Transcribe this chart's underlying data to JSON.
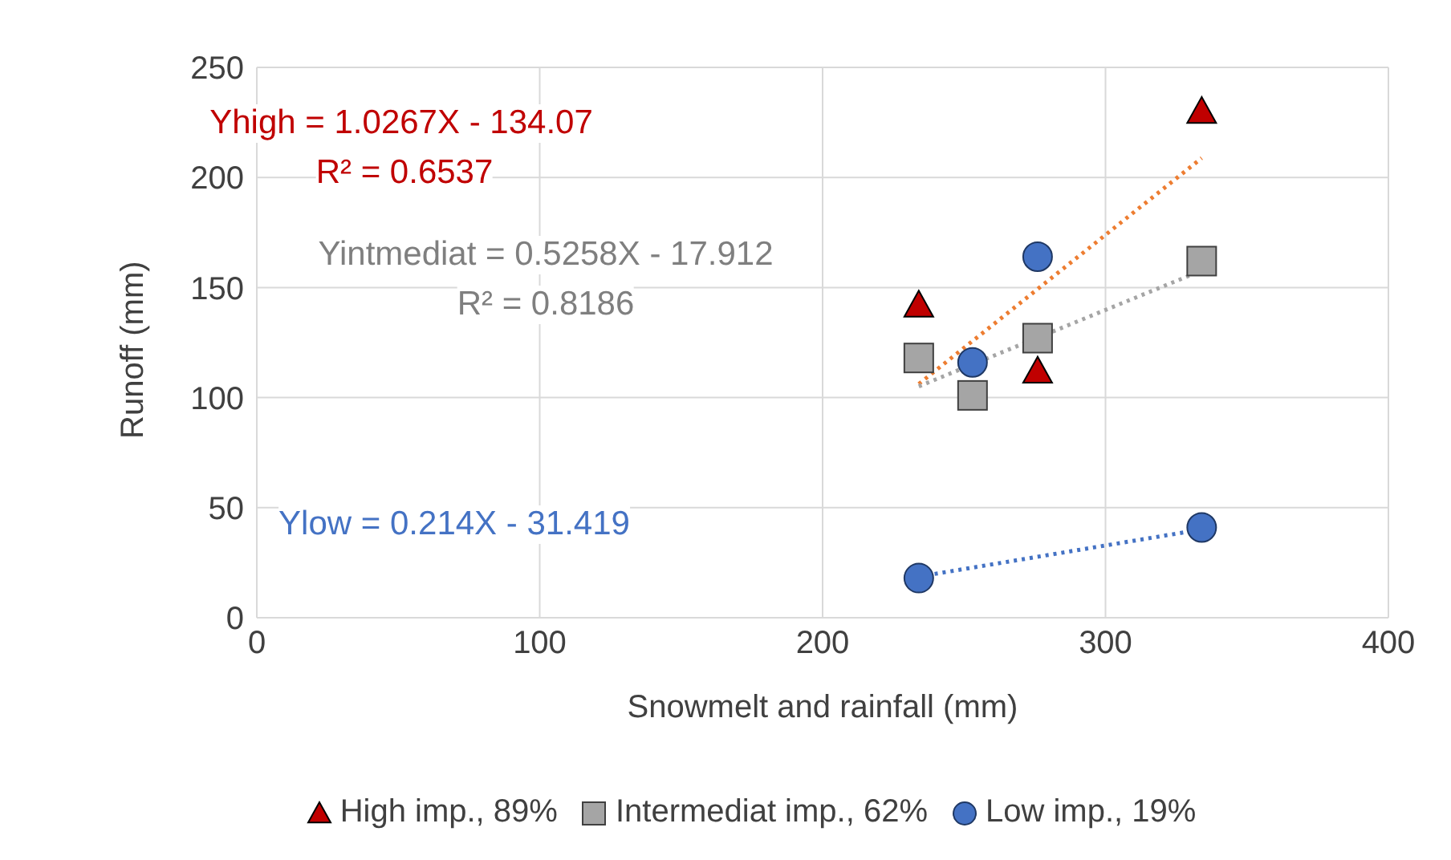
{
  "chart_data": {
    "type": "scatter",
    "xlabel": "Snowmelt and rainfall (mm)",
    "ylabel": "Runoff (mm)",
    "xlim": [
      0,
      400
    ],
    "xticks": [
      0,
      100,
      200,
      300,
      400
    ],
    "ylim": [
      0,
      250
    ],
    "yticks": [
      0,
      50,
      100,
      150,
      200,
      250
    ],
    "grid": true,
    "legend": "bottom",
    "series": [
      {
        "name": "High imp., 89%",
        "marker": "triangle",
        "color": "#c00000",
        "x": [
          234,
          276,
          334
        ],
        "values": [
          142,
          112,
          230
        ]
      },
      {
        "name": "Intermediat imp., 62%",
        "marker": "square",
        "color": "#a5a5a5",
        "x": [
          234,
          253,
          276,
          334
        ],
        "values": [
          118,
          101,
          127,
          162
        ]
      },
      {
        "name": "Low imp., 19%",
        "marker": "circle",
        "color": "#4472c4",
        "x": [
          234,
          253,
          276,
          334
        ],
        "values": [
          18,
          116,
          164,
          41
        ]
      },
      {
        "type": "line",
        "line_style": "dotted",
        "marker": "none",
        "color": "#ed7d31",
        "x": [
          234,
          334
        ],
        "values": [
          106.2,
          208.8
        ]
      },
      {
        "type": "line",
        "line_style": "dotted",
        "marker": "none",
        "color": "#a5a5a5",
        "x": [
          234,
          334
        ],
        "values": [
          105.1,
          157.7
        ]
      },
      {
        "type": "line",
        "line_style": "dotted",
        "marker": "none",
        "color": "#4472c4",
        "x": [
          234,
          334
        ],
        "values": [
          18.7,
          40.1
        ]
      }
    ],
    "annotations": [
      "Yhigh = 1.0267X - 134.07",
      "R² = 0.6537",
      "Yintmediat = 0.5258X - 17.912",
      "R² = 0.8186",
      "Ylow = 0.214X - 31.419"
    ]
  }
}
